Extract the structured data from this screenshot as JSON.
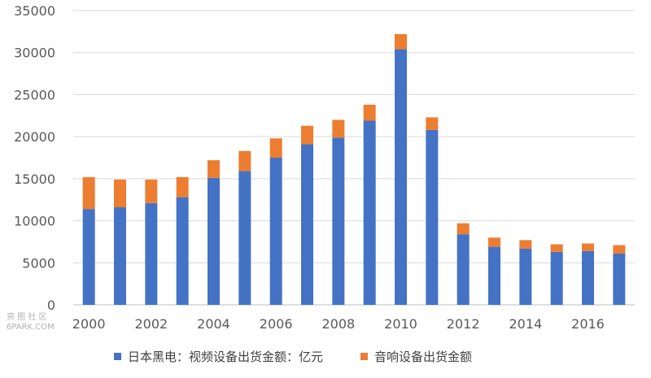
{
  "chart_data": {
    "type": "bar",
    "stacked": true,
    "categories": [
      "2000",
      "2001",
      "2002",
      "2003",
      "2004",
      "2005",
      "2006",
      "2007",
      "2008",
      "2009",
      "2010",
      "2011",
      "2012",
      "2013",
      "2014",
      "2015",
      "2016",
      "2017"
    ],
    "x_tick_labels": [
      "2000",
      "2002",
      "2004",
      "2006",
      "2008",
      "2010",
      "2012",
      "2014",
      "2016"
    ],
    "y_tick_labels": [
      "0",
      "5000",
      "10000",
      "15000",
      "20000",
      "25000",
      "30000",
      "35000"
    ],
    "ylim": [
      0,
      35000
    ],
    "grid": true,
    "legend_position": "bottom",
    "series": [
      {
        "name": "日本黑电：视频设备出货金额：亿元",
        "color": "#4472C4",
        "values": [
          11400,
          11600,
          12100,
          12800,
          15100,
          15900,
          17500,
          19100,
          19900,
          21900,
          30400,
          20800,
          8400,
          6900,
          6700,
          6300,
          6400,
          6100
        ]
      },
      {
        "name": "音响设备出货金额",
        "color": "#ED7D31",
        "values": [
          3800,
          3300,
          2800,
          2400,
          2100,
          2400,
          2300,
          2200,
          2100,
          1900,
          1800,
          1500,
          1300,
          1100,
          1000,
          900,
          900,
          1000
        ]
      }
    ]
  },
  "watermark": {
    "line1": "资 图 社 区",
    "line2": "6PARK.COM"
  }
}
